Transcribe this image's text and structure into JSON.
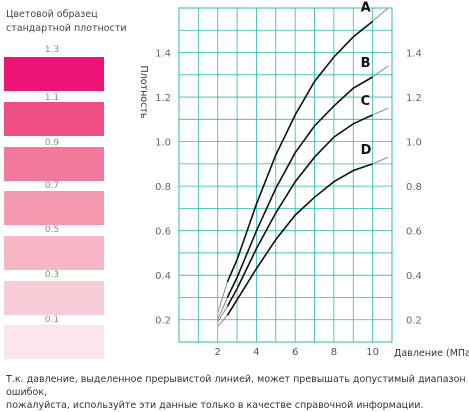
{
  "legend": {
    "title_line1": "Цветовой образец",
    "title_line2": "стандартной плотности",
    "swatches": [
      {
        "label": "1.3",
        "color": "#ec1474"
      },
      {
        "label": "1.1",
        "color": "#ee4f86"
      },
      {
        "label": "0.9",
        "color": "#f17a9c"
      },
      {
        "label": "0.7",
        "color": "#f499b0"
      },
      {
        "label": "0.5",
        "color": "#f7b6c6"
      },
      {
        "label": "0.3",
        "color": "#f9cdd8"
      },
      {
        "label": "0.1",
        "color": "#fce6eb"
      }
    ]
  },
  "chart_data": {
    "type": "line",
    "ylabel": "Плотность",
    "xlabel": "Давление (МПа)",
    "xlim": [
      0,
      11
    ],
    "ylim": [
      0.1,
      1.6
    ],
    "x_ticks": [
      2,
      4,
      6,
      8,
      10
    ],
    "y_ticks": [
      0.2,
      0.4,
      0.6,
      0.8,
      1.0,
      1.2,
      1.4
    ],
    "grid": true,
    "grid_color": "#2bb9b2",
    "series": [
      {
        "name": "A",
        "x": [
          2.0,
          2.5,
          3,
          4,
          5,
          6,
          7,
          8,
          9,
          10,
          10.8
        ],
        "y": [
          0.23,
          0.37,
          0.47,
          0.72,
          0.94,
          1.12,
          1.27,
          1.38,
          1.47,
          1.54,
          1.6
        ]
      },
      {
        "name": "B",
        "x": [
          2.0,
          2.5,
          3,
          4,
          5,
          6,
          7,
          8,
          9,
          10,
          10.8
        ],
        "y": [
          0.2,
          0.3,
          0.39,
          0.6,
          0.79,
          0.95,
          1.07,
          1.16,
          1.24,
          1.29,
          1.34
        ]
      },
      {
        "name": "C",
        "x": [
          2.0,
          2.5,
          3,
          4,
          5,
          6,
          7,
          8,
          9,
          10,
          10.8
        ],
        "y": [
          0.19,
          0.26,
          0.34,
          0.52,
          0.68,
          0.82,
          0.93,
          1.02,
          1.08,
          1.12,
          1.15
        ]
      },
      {
        "name": "D",
        "x": [
          2.0,
          2.5,
          3,
          4,
          5,
          6,
          7,
          8,
          9,
          10,
          10.8
        ],
        "y": [
          0.17,
          0.22,
          0.29,
          0.43,
          0.56,
          0.67,
          0.75,
          0.82,
          0.87,
          0.9,
          0.93
        ]
      }
    ]
  },
  "footnote": {
    "line1": "Т.к. давление, выделенное прерывистой линией, может превышать допустимый диапазон ошибок,",
    "line2": "пожалуйста, используйте эти данные только в качестве справочной информации."
  }
}
